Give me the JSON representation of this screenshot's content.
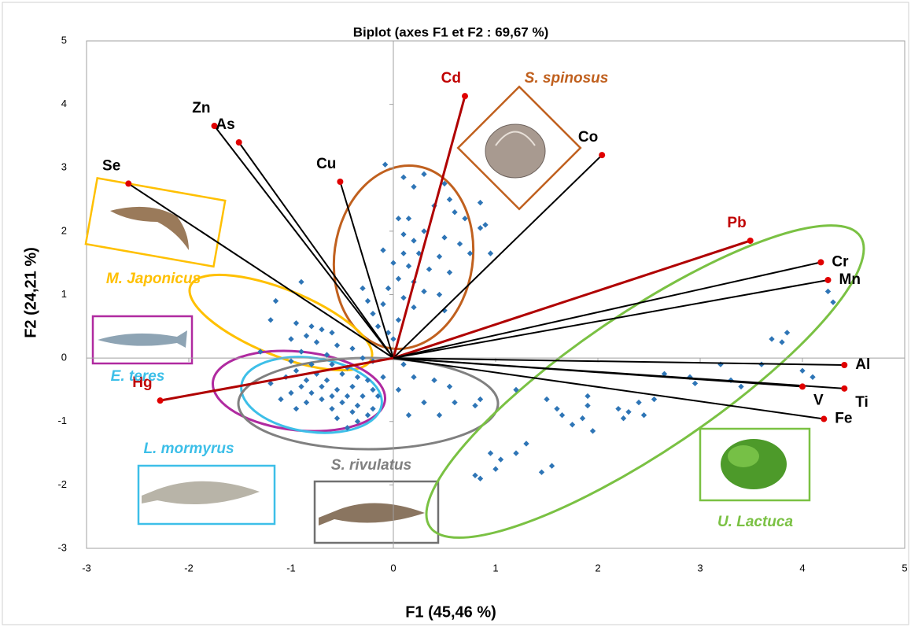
{
  "chart_data": {
    "type": "biplot",
    "title": "Biplot (axes F1 et F2 : 69,67 %)",
    "x_label": "F1 (45,46 %)",
    "y_label": "F2 (24,21 %)",
    "xlim": [
      -3,
      5
    ],
    "ylim": [
      -3,
      5
    ],
    "xticks": [
      -3,
      -2,
      -1,
      0,
      1,
      2,
      3,
      4,
      5
    ],
    "yticks": [
      -3,
      -2,
      -1,
      0,
      1,
      2,
      3,
      4,
      5
    ],
    "color": "#2e75b6",
    "x": [
      -0.08,
      0.1,
      0.2,
      0.3,
      0.5,
      0.55,
      0.85,
      0.6,
      0.4,
      0.15,
      0.05,
      0.7,
      0.9,
      0.3,
      0.1,
      0.2,
      0.5,
      0.65,
      0.85,
      -0.1,
      0.1,
      0.25,
      0.45,
      0.75,
      0.95,
      0.0,
      0.15,
      0.35,
      0.55,
      0.05,
      0.2,
      -0.05,
      0.3,
      0.45,
      0.1,
      -0.1,
      0.2,
      0.5,
      -0.2,
      0.05,
      -0.15,
      -0.25,
      -0.3,
      -0.05,
      0.0,
      -0.9,
      -1.15,
      -1.2,
      -0.95,
      -0.8,
      -0.7,
      -0.6,
      -0.85,
      -1.0,
      -0.75,
      -0.55,
      -0.4,
      -0.9,
      -0.65,
      -0.3,
      -1.0,
      -0.8,
      -0.6,
      -0.45,
      -0.2,
      -0.95,
      -0.75,
      -0.5,
      -0.35,
      -1.05,
      -0.85,
      -0.65,
      -0.25,
      -0.9,
      -0.7,
      -0.55,
      -0.4,
      -0.2,
      -1.0,
      -0.8,
      -0.6,
      -0.45,
      -0.3,
      -0.7,
      -0.5,
      -0.35,
      -0.85,
      -0.6,
      -0.4,
      -0.55,
      -0.35,
      -0.25,
      -0.45,
      -0.2,
      -0.15,
      -1.1,
      -0.95,
      -1.2,
      -1.3,
      -0.1,
      0.1,
      0.2,
      0.05,
      0.3,
      0.15,
      0.6,
      0.8,
      0.85,
      0.55,
      0.4,
      0.45,
      1.2,
      1.5,
      1.6,
      1.65,
      1.75,
      1.85,
      1.9,
      1.95,
      2.2,
      2.3,
      2.4,
      2.45,
      2.55,
      1.9,
      2.65,
      2.9,
      2.95,
      3.3,
      3.4,
      3.6,
      3.7,
      3.8,
      3.85,
      4.0,
      4.1,
      4.3,
      4.25,
      0.8,
      0.85,
      1.0,
      1.05,
      1.2,
      1.3,
      1.45,
      1.55,
      0.95,
      3.2,
      2.25
    ],
    "values": [
      3.05,
      2.85,
      2.7,
      2.9,
      2.75,
      2.5,
      2.45,
      2.3,
      2.4,
      2.2,
      2.2,
      2.2,
      2.1,
      2.0,
      1.95,
      1.85,
      1.9,
      1.8,
      2.05,
      1.7,
      1.65,
      1.65,
      1.6,
      1.65,
      1.65,
      1.5,
      1.45,
      1.4,
      1.35,
      1.25,
      1.2,
      1.1,
      1.05,
      1.0,
      0.95,
      0.85,
      0.8,
      0.75,
      0.7,
      0.6,
      0.5,
      0.9,
      1.1,
      0.4,
      0.3,
      1.2,
      0.9,
      0.6,
      0.55,
      0.5,
      0.45,
      0.4,
      0.35,
      0.3,
      0.25,
      0.2,
      0.15,
      0.1,
      0.05,
      0.0,
      -0.05,
      -0.1,
      -0.1,
      -0.15,
      -0.05,
      -0.2,
      -0.25,
      -0.25,
      -0.3,
      -0.3,
      -0.35,
      -0.35,
      -0.35,
      -0.45,
      -0.45,
      -0.5,
      -0.45,
      -0.5,
      -0.55,
      -0.55,
      -0.6,
      -0.6,
      -0.6,
      -0.65,
      -0.7,
      -0.75,
      -0.7,
      -0.8,
      -0.85,
      -0.95,
      -1.0,
      -0.9,
      -1.1,
      -0.8,
      -0.6,
      -0.65,
      -0.8,
      -0.4,
      0.1,
      -0.3,
      -0.1,
      -0.3,
      -0.5,
      -0.7,
      -0.9,
      -0.7,
      -0.75,
      -0.65,
      -0.45,
      -0.35,
      -0.9,
      -0.5,
      -0.65,
      -0.8,
      -0.9,
      -1.05,
      -0.95,
      -0.75,
      -1.15,
      -0.8,
      -0.85,
      -0.7,
      -0.9,
      -0.65,
      -0.6,
      -0.25,
      -0.3,
      -0.4,
      -0.35,
      -0.45,
      -0.1,
      0.3,
      0.25,
      0.4,
      -0.2,
      -0.3,
      0.88,
      1.05,
      -1.85,
      -1.9,
      -1.75,
      -1.6,
      -1.5,
      -1.35,
      -1.8,
      -1.7,
      -1.5,
      -0.1,
      -0.95
    ],
    "vectors": [
      {
        "label": "Cd",
        "x": 0.7,
        "y": 4.13,
        "color": "#c00000"
      },
      {
        "label": "Zn",
        "x": -1.75,
        "y": 3.66,
        "color": "#000000"
      },
      {
        "label": "As",
        "x": -1.51,
        "y": 3.4,
        "color": "#000000"
      },
      {
        "label": "Se",
        "x": -2.59,
        "y": 2.75,
        "color": "#000000"
      },
      {
        "label": "Cu",
        "x": -0.52,
        "y": 2.78,
        "color": "#000000"
      },
      {
        "label": "Co",
        "x": 2.04,
        "y": 3.2,
        "color": "#000000"
      },
      {
        "label": "Pb",
        "x": 3.49,
        "y": 1.85,
        "color": "#c00000"
      },
      {
        "label": "Cr",
        "x": 4.18,
        "y": 1.51,
        "color": "#000000"
      },
      {
        "label": "Mn",
        "x": 4.25,
        "y": 1.23,
        "color": "#000000"
      },
      {
        "label": "Al",
        "x": 4.41,
        "y": -0.11,
        "color": "#000000"
      },
      {
        "label": "Ti",
        "x": 4.41,
        "y": -0.48,
        "color": "#000000"
      },
      {
        "label": "V",
        "x": 4.0,
        "y": -0.45,
        "color": "#000000"
      },
      {
        "label": "Fe",
        "x": 4.21,
        "y": -0.96,
        "color": "#000000"
      },
      {
        "label": "Hg",
        "x": -2.28,
        "y": -0.67,
        "color": "#c00000"
      }
    ],
    "groups": [
      {
        "label": "S. spinosus",
        "color": "#c0601e"
      },
      {
        "label": "M. Japonicus",
        "color": "#ffc000"
      },
      {
        "label": "E. teres",
        "color": "#3dbfe8"
      },
      {
        "label": "L. mormyrus",
        "color": "#3dbfe8"
      },
      {
        "label": "S. rivulatus",
        "color": "#808080"
      },
      {
        "label": "U. Lactuca",
        "color": "#7ac143"
      }
    ]
  }
}
